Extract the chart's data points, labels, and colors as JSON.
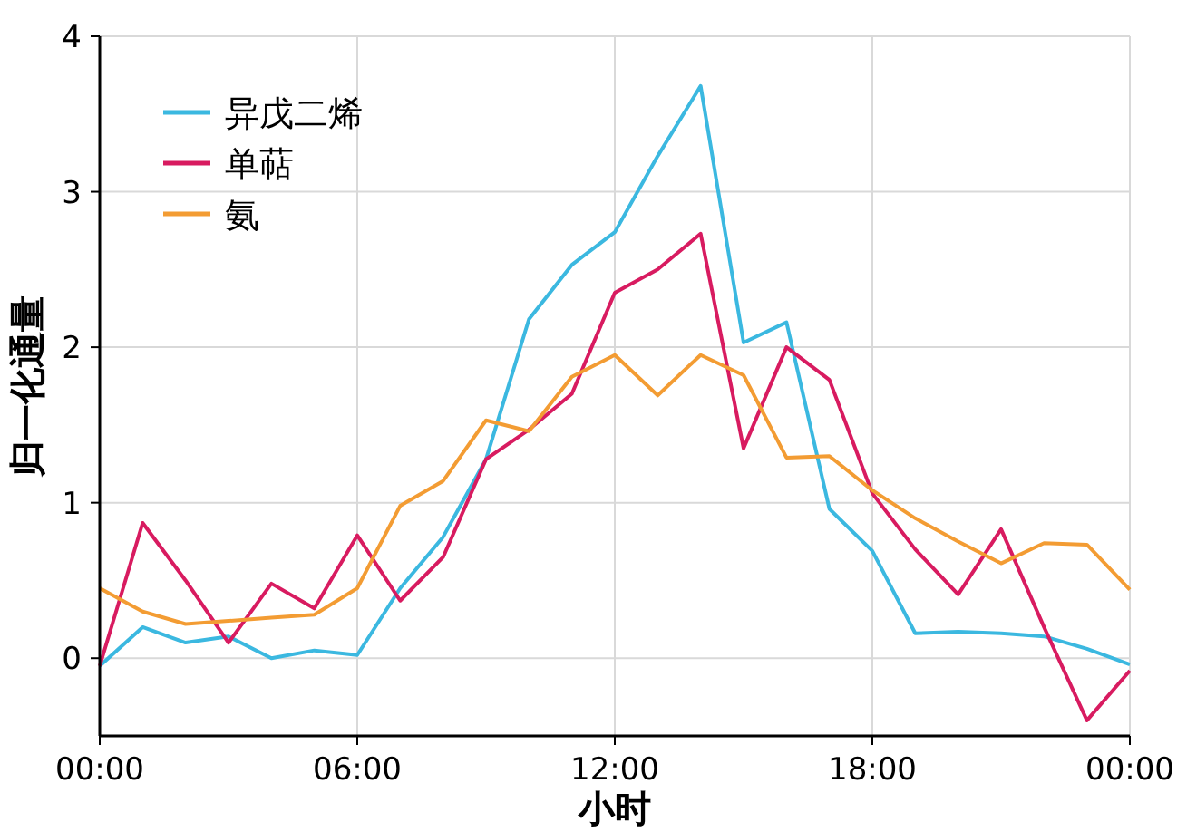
{
  "chart_data": {
    "type": "line",
    "xlabel": "小时",
    "ylabel": "归一化通量",
    "x": [
      0,
      1,
      2,
      3,
      4,
      5,
      6,
      7,
      8,
      9,
      10,
      11,
      12,
      13,
      14,
      15,
      16,
      17,
      18,
      19,
      20,
      21,
      22,
      23,
      24
    ],
    "xlim": [
      0,
      24
    ],
    "xticks": [
      {
        "value": 0,
        "label": "00:00"
      },
      {
        "value": 6,
        "label": "06:00"
      },
      {
        "value": 12,
        "label": "12:00"
      },
      {
        "value": 18,
        "label": "18:00"
      },
      {
        "value": 24,
        "label": "00:00"
      }
    ],
    "ylim": [
      -0.5,
      4
    ],
    "yticks": [
      0,
      1,
      2,
      3,
      4
    ],
    "grid": true,
    "legend": "top left",
    "marker": "none",
    "line_style": "solid",
    "series": [
      {
        "name": "异戊二烯",
        "color": "#3bb8e0",
        "values": [
          -0.05,
          0.2,
          0.1,
          0.14,
          0.0,
          0.05,
          0.02,
          0.45,
          0.78,
          1.28,
          2.18,
          2.53,
          2.74,
          3.23,
          3.68,
          2.03,
          2.16,
          0.96,
          0.69,
          0.16,
          0.17,
          0.16,
          0.14,
          0.06,
          -0.04
        ]
      },
      {
        "name": "单萜",
        "color": "#d81b60",
        "values": [
          -0.05,
          0.87,
          0.5,
          0.1,
          0.48,
          0.32,
          0.79,
          0.37,
          0.65,
          1.28,
          1.47,
          1.7,
          2.35,
          2.5,
          2.73,
          1.35,
          2.0,
          1.79,
          1.06,
          0.7,
          0.41,
          0.83,
          0.2,
          -0.4,
          -0.08
        ]
      },
      {
        "name": "氨",
        "color": "#f39c33",
        "values": [
          0.45,
          0.3,
          0.22,
          0.24,
          0.26,
          0.28,
          0.45,
          0.98,
          1.14,
          1.53,
          1.46,
          1.81,
          1.95,
          1.69,
          1.95,
          1.82,
          1.29,
          1.3,
          1.08,
          0.9,
          0.75,
          0.61,
          0.74,
          0.73,
          0.44
        ]
      }
    ]
  }
}
